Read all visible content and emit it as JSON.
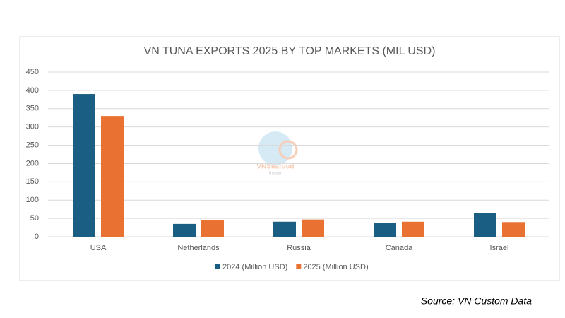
{
  "chart_data": {
    "type": "bar",
    "title": "VN TUNA EXPORTS 2025 BY TOP MARKETS (MIL USD)",
    "categories": [
      "USA",
      "Netherlands",
      "Russia",
      "Canada",
      "Israel"
    ],
    "series": [
      {
        "name": "2024 (Million USD)",
        "color": "#1b5e84",
        "values": [
          390,
          35,
          41,
          37,
          65
        ]
      },
      {
        "name": "2025 (Million USD)",
        "color": "#e97132",
        "values": [
          330,
          45,
          47,
          41,
          40
        ]
      }
    ],
    "ylim": [
      0,
      450
    ],
    "yticks": [
      0,
      50,
      100,
      150,
      200,
      250,
      300,
      350,
      400,
      450
    ],
    "grid": true,
    "legend": "bottom",
    "watermark": "VNSeafood",
    "watermark_sub": "Insider",
    "source": "Source: VN Custom Data"
  }
}
